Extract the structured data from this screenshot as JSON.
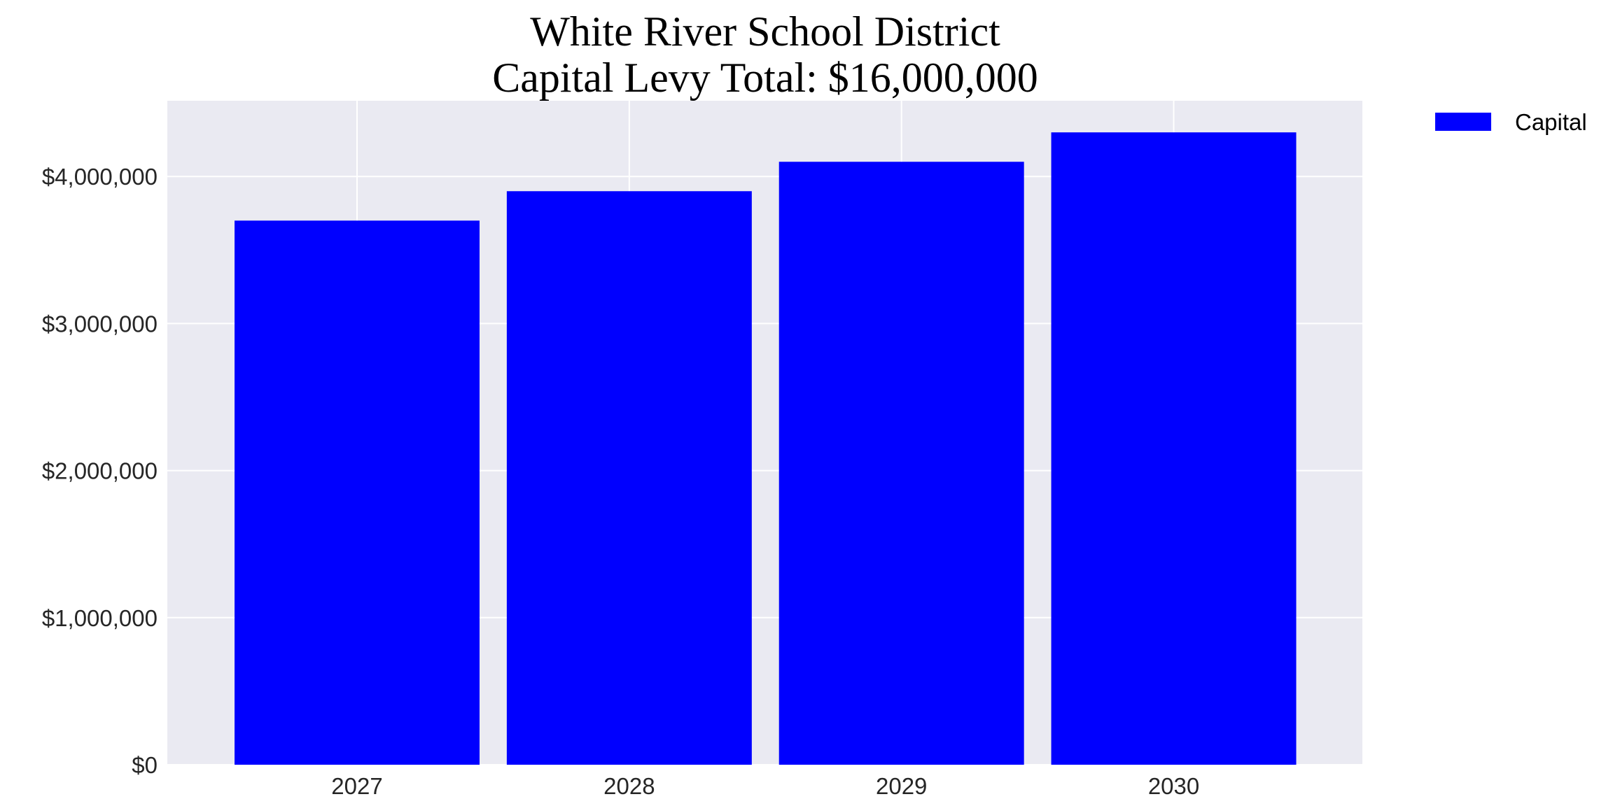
{
  "chart_data": {
    "type": "bar",
    "title_lines": [
      "White River School District",
      "Capital Levy Total: $16,000,000"
    ],
    "categories": [
      "2027",
      "2028",
      "2029",
      "2030"
    ],
    "series": [
      {
        "name": "Capital",
        "values": [
          3700000,
          3900000,
          4100000,
          4300000
        ],
        "color": "#0000ff"
      }
    ],
    "xlabel": "",
    "ylabel": "",
    "ylim": [
      0,
      4515000
    ],
    "yticks": [
      0,
      1000000,
      2000000,
      3000000,
      4000000
    ],
    "ytick_labels": [
      "$0",
      "$1,000,000",
      "$2,000,000",
      "$3,000,000",
      "$4,000,000"
    ],
    "grid": true,
    "background_color": "#eaeaf2",
    "grid_color": "#ffffff",
    "legend": {
      "placement": "outside-top-right",
      "entries": [
        "Capital"
      ]
    }
  }
}
